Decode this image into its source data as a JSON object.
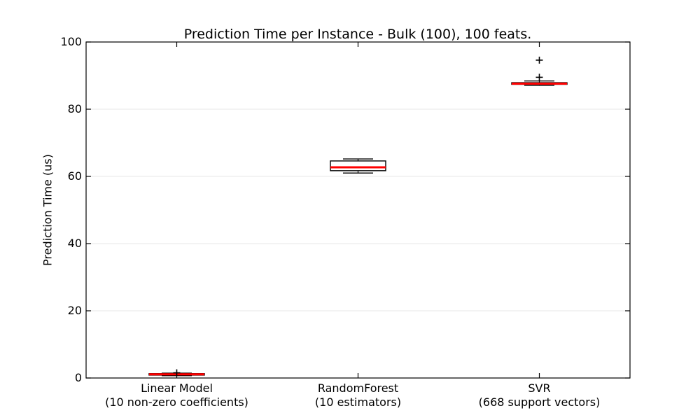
{
  "chart_data": {
    "type": "boxplot",
    "title": "Prediction Time per Instance - Bulk (100), 100 feats.",
    "ylabel": "Prediction Time (us)",
    "xlabel": "",
    "ylim": [
      0,
      100
    ],
    "yticks": [
      0,
      20,
      40,
      60,
      80,
      100
    ],
    "grid": "horizontal-light",
    "legend": "none",
    "categories": [
      {
        "line1": "Linear Model",
        "line2": "(10 non-zero coefficients)"
      },
      {
        "line1": "RandomForest",
        "line2": "(10 estimators)"
      },
      {
        "line1": "SVR",
        "line2": "(668 support vectors)"
      }
    ],
    "series": [
      {
        "name": "Linear Model",
        "whisker_low": 0.7,
        "q1": 0.85,
        "median": 1.1,
        "q3": 1.3,
        "whisker_high": 1.45,
        "fliers": [
          1.55
        ]
      },
      {
        "name": "RandomForest",
        "whisker_low": 61.0,
        "q1": 61.7,
        "median": 62.7,
        "q3": 64.6,
        "whisker_high": 65.2,
        "fliers": []
      },
      {
        "name": "SVR",
        "whisker_low": 87.1,
        "q1": 87.4,
        "median": 87.6,
        "q3": 87.9,
        "whisker_high": 88.4,
        "fliers": [
          89.5,
          94.6
        ]
      }
    ],
    "colors": {
      "box": "#000000",
      "median": "#ff0000",
      "flier": "#000000",
      "grid": "#e7e7e7",
      "frame": "#000000",
      "background": "#ffffff"
    }
  }
}
